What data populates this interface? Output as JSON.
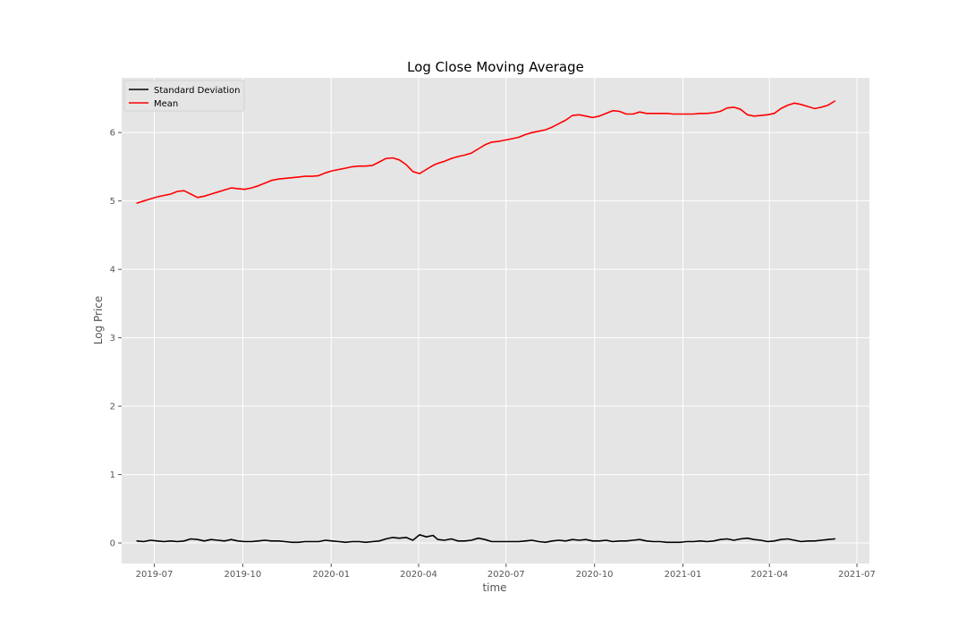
{
  "chart_data": {
    "type": "line",
    "title": "Log Close Moving Average",
    "xlabel": "time",
    "ylabel": "Log Price",
    "xlim": [
      "2019-05-28",
      "2021-07-14"
    ],
    "ylim": [
      -0.3,
      6.8
    ],
    "x_ticks": [
      "2019-07-01",
      "2019-10-01",
      "2020-01-01",
      "2020-04-01",
      "2020-07-01",
      "2020-10-01",
      "2021-01-01",
      "2021-04-01",
      "2021-07-01"
    ],
    "x_tick_labels": [
      "2019-07",
      "2019-10",
      "2020-01",
      "2020-04",
      "2020-07",
      "2020-10",
      "2021-01",
      "2021-04",
      "2021-07"
    ],
    "y_ticks": [
      0,
      1,
      2,
      3,
      4,
      5,
      6
    ],
    "y_tick_labels": [
      "0",
      "1",
      "2",
      "3",
      "4",
      "5",
      "6"
    ],
    "grid": true,
    "legend_position": "top-left",
    "background_color": "#e5e5e5",
    "grid_color": "#ffffff",
    "series": [
      {
        "name": "Standard Deviation",
        "color": "#000000",
        "points": [
          [
            "2019-06-13",
            0.03
          ],
          [
            "2019-06-20",
            0.02
          ],
          [
            "2019-06-27",
            0.04
          ],
          [
            "2019-07-04",
            0.03
          ],
          [
            "2019-07-11",
            0.02
          ],
          [
            "2019-07-18",
            0.03
          ],
          [
            "2019-07-25",
            0.02
          ],
          [
            "2019-08-01",
            0.03
          ],
          [
            "2019-08-08",
            0.06
          ],
          [
            "2019-08-15",
            0.05
          ],
          [
            "2019-08-22",
            0.03
          ],
          [
            "2019-08-29",
            0.05
          ],
          [
            "2019-09-05",
            0.04
          ],
          [
            "2019-09-12",
            0.03
          ],
          [
            "2019-09-19",
            0.05
          ],
          [
            "2019-09-26",
            0.03
          ],
          [
            "2019-10-03",
            0.02
          ],
          [
            "2019-10-10",
            0.02
          ],
          [
            "2019-10-17",
            0.03
          ],
          [
            "2019-10-24",
            0.04
          ],
          [
            "2019-10-31",
            0.03
          ],
          [
            "2019-11-07",
            0.03
          ],
          [
            "2019-11-14",
            0.02
          ],
          [
            "2019-11-21",
            0.01
          ],
          [
            "2019-11-28",
            0.01
          ],
          [
            "2019-12-05",
            0.02
          ],
          [
            "2019-12-12",
            0.02
          ],
          [
            "2019-12-19",
            0.02
          ],
          [
            "2019-12-26",
            0.04
          ],
          [
            "2020-01-02",
            0.03
          ],
          [
            "2020-01-09",
            0.02
          ],
          [
            "2020-01-16",
            0.01
          ],
          [
            "2020-01-23",
            0.02
          ],
          [
            "2020-01-30",
            0.02
          ],
          [
            "2020-02-06",
            0.01
          ],
          [
            "2020-02-13",
            0.02
          ],
          [
            "2020-02-20",
            0.03
          ],
          [
            "2020-02-27",
            0.06
          ],
          [
            "2020-03-05",
            0.08
          ],
          [
            "2020-03-12",
            0.07
          ],
          [
            "2020-03-19",
            0.08
          ],
          [
            "2020-03-26",
            0.04
          ],
          [
            "2020-04-02",
            0.12
          ],
          [
            "2020-04-09",
            0.09
          ],
          [
            "2020-04-16",
            0.11
          ],
          [
            "2020-04-21",
            0.05
          ],
          [
            "2020-04-28",
            0.04
          ],
          [
            "2020-05-05",
            0.06
          ],
          [
            "2020-05-12",
            0.03
          ],
          [
            "2020-05-19",
            0.03
          ],
          [
            "2020-05-26",
            0.04
          ],
          [
            "2020-06-02",
            0.07
          ],
          [
            "2020-06-09",
            0.05
          ],
          [
            "2020-06-16",
            0.02
          ],
          [
            "2020-06-23",
            0.02
          ],
          [
            "2020-06-30",
            0.02
          ],
          [
            "2020-07-07",
            0.02
          ],
          [
            "2020-07-14",
            0.02
          ],
          [
            "2020-07-21",
            0.03
          ],
          [
            "2020-07-28",
            0.04
          ],
          [
            "2020-08-04",
            0.02
          ],
          [
            "2020-08-11",
            0.01
          ],
          [
            "2020-08-18",
            0.03
          ],
          [
            "2020-08-25",
            0.04
          ],
          [
            "2020-09-01",
            0.03
          ],
          [
            "2020-09-08",
            0.05
          ],
          [
            "2020-09-15",
            0.04
          ],
          [
            "2020-09-22",
            0.05
          ],
          [
            "2020-09-29",
            0.03
          ],
          [
            "2020-10-06",
            0.03
          ],
          [
            "2020-10-13",
            0.04
          ],
          [
            "2020-10-20",
            0.02
          ],
          [
            "2020-10-27",
            0.03
          ],
          [
            "2020-11-03",
            0.03
          ],
          [
            "2020-11-10",
            0.04
          ],
          [
            "2020-11-17",
            0.05
          ],
          [
            "2020-11-24",
            0.03
          ],
          [
            "2020-12-01",
            0.02
          ],
          [
            "2020-12-08",
            0.02
          ],
          [
            "2020-12-15",
            0.01
          ],
          [
            "2020-12-22",
            0.01
          ],
          [
            "2020-12-29",
            0.01
          ],
          [
            "2021-01-05",
            0.02
          ],
          [
            "2021-01-12",
            0.02
          ],
          [
            "2021-01-19",
            0.03
          ],
          [
            "2021-01-26",
            0.02
          ],
          [
            "2021-02-02",
            0.03
          ],
          [
            "2021-02-09",
            0.05
          ],
          [
            "2021-02-16",
            0.06
          ],
          [
            "2021-02-23",
            0.04
          ],
          [
            "2021-03-02",
            0.06
          ],
          [
            "2021-03-09",
            0.07
          ],
          [
            "2021-03-16",
            0.05
          ],
          [
            "2021-03-23",
            0.04
          ],
          [
            "2021-03-30",
            0.02
          ],
          [
            "2021-04-06",
            0.03
          ],
          [
            "2021-04-13",
            0.05
          ],
          [
            "2021-04-20",
            0.06
          ],
          [
            "2021-04-27",
            0.04
          ],
          [
            "2021-05-04",
            0.02
          ],
          [
            "2021-05-11",
            0.03
          ],
          [
            "2021-05-18",
            0.03
          ],
          [
            "2021-05-25",
            0.04
          ],
          [
            "2021-06-01",
            0.05
          ],
          [
            "2021-06-08",
            0.06
          ]
        ]
      },
      {
        "name": "Mean",
        "color": "#ff0000",
        "points": [
          [
            "2019-06-13",
            4.97
          ],
          [
            "2019-06-20",
            5.0
          ],
          [
            "2019-06-27",
            5.03
          ],
          [
            "2019-07-04",
            5.06
          ],
          [
            "2019-07-11",
            5.08
          ],
          [
            "2019-07-18",
            5.1
          ],
          [
            "2019-07-25",
            5.14
          ],
          [
            "2019-08-01",
            5.15
          ],
          [
            "2019-08-08",
            5.1
          ],
          [
            "2019-08-15",
            5.05
          ],
          [
            "2019-08-22",
            5.07
          ],
          [
            "2019-08-29",
            5.1
          ],
          [
            "2019-09-05",
            5.13
          ],
          [
            "2019-09-12",
            5.16
          ],
          [
            "2019-09-19",
            5.19
          ],
          [
            "2019-09-26",
            5.18
          ],
          [
            "2019-10-03",
            5.17
          ],
          [
            "2019-10-10",
            5.19
          ],
          [
            "2019-10-17",
            5.22
          ],
          [
            "2019-10-24",
            5.26
          ],
          [
            "2019-10-31",
            5.3
          ],
          [
            "2019-11-07",
            5.32
          ],
          [
            "2019-11-14",
            5.33
          ],
          [
            "2019-11-21",
            5.34
          ],
          [
            "2019-11-28",
            5.35
          ],
          [
            "2019-12-05",
            5.36
          ],
          [
            "2019-12-12",
            5.36
          ],
          [
            "2019-12-19",
            5.37
          ],
          [
            "2019-12-26",
            5.41
          ],
          [
            "2020-01-02",
            5.44
          ],
          [
            "2020-01-09",
            5.46
          ],
          [
            "2020-01-16",
            5.48
          ],
          [
            "2020-01-23",
            5.5
          ],
          [
            "2020-01-30",
            5.51
          ],
          [
            "2020-02-06",
            5.51
          ],
          [
            "2020-02-13",
            5.52
          ],
          [
            "2020-02-20",
            5.57
          ],
          [
            "2020-02-27",
            5.62
          ],
          [
            "2020-03-05",
            5.63
          ],
          [
            "2020-03-12",
            5.6
          ],
          [
            "2020-03-19",
            5.53
          ],
          [
            "2020-03-26",
            5.43
          ],
          [
            "2020-04-02",
            5.4
          ],
          [
            "2020-04-09",
            5.46
          ],
          [
            "2020-04-16",
            5.52
          ],
          [
            "2020-04-21",
            5.55
          ],
          [
            "2020-04-28",
            5.58
          ],
          [
            "2020-05-05",
            5.62
          ],
          [
            "2020-05-12",
            5.65
          ],
          [
            "2020-05-19",
            5.67
          ],
          [
            "2020-05-26",
            5.7
          ],
          [
            "2020-06-02",
            5.76
          ],
          [
            "2020-06-09",
            5.82
          ],
          [
            "2020-06-16",
            5.86
          ],
          [
            "2020-06-23",
            5.87
          ],
          [
            "2020-06-30",
            5.89
          ],
          [
            "2020-07-07",
            5.91
          ],
          [
            "2020-07-14",
            5.93
          ],
          [
            "2020-07-21",
            5.97
          ],
          [
            "2020-07-28",
            6.0
          ],
          [
            "2020-08-04",
            6.02
          ],
          [
            "2020-08-11",
            6.04
          ],
          [
            "2020-08-18",
            6.08
          ],
          [
            "2020-08-25",
            6.13
          ],
          [
            "2020-09-01",
            6.18
          ],
          [
            "2020-09-08",
            6.25
          ],
          [
            "2020-09-15",
            6.26
          ],
          [
            "2020-09-22",
            6.24
          ],
          [
            "2020-09-29",
            6.22
          ],
          [
            "2020-10-06",
            6.24
          ],
          [
            "2020-10-13",
            6.28
          ],
          [
            "2020-10-20",
            6.32
          ],
          [
            "2020-10-27",
            6.31
          ],
          [
            "2020-11-03",
            6.27
          ],
          [
            "2020-11-10",
            6.27
          ],
          [
            "2020-11-17",
            6.3
          ],
          [
            "2020-11-24",
            6.28
          ],
          [
            "2020-12-01",
            6.28
          ],
          [
            "2020-12-08",
            6.28
          ],
          [
            "2020-12-15",
            6.28
          ],
          [
            "2020-12-22",
            6.27
          ],
          [
            "2020-12-29",
            6.27
          ],
          [
            "2021-01-05",
            6.27
          ],
          [
            "2021-01-12",
            6.27
          ],
          [
            "2021-01-19",
            6.28
          ],
          [
            "2021-01-26",
            6.28
          ],
          [
            "2021-02-02",
            6.29
          ],
          [
            "2021-02-09",
            6.31
          ],
          [
            "2021-02-16",
            6.36
          ],
          [
            "2021-02-23",
            6.37
          ],
          [
            "2021-03-02",
            6.34
          ],
          [
            "2021-03-09",
            6.26
          ],
          [
            "2021-03-16",
            6.24
          ],
          [
            "2021-03-23",
            6.25
          ],
          [
            "2021-03-30",
            6.26
          ],
          [
            "2021-04-06",
            6.28
          ],
          [
            "2021-04-13",
            6.35
          ],
          [
            "2021-04-20",
            6.4
          ],
          [
            "2021-04-27",
            6.43
          ],
          [
            "2021-05-04",
            6.41
          ],
          [
            "2021-05-11",
            6.38
          ],
          [
            "2021-05-18",
            6.35
          ],
          [
            "2021-05-25",
            6.37
          ],
          [
            "2021-06-01",
            6.4
          ],
          [
            "2021-06-08",
            6.46
          ]
        ]
      }
    ]
  }
}
